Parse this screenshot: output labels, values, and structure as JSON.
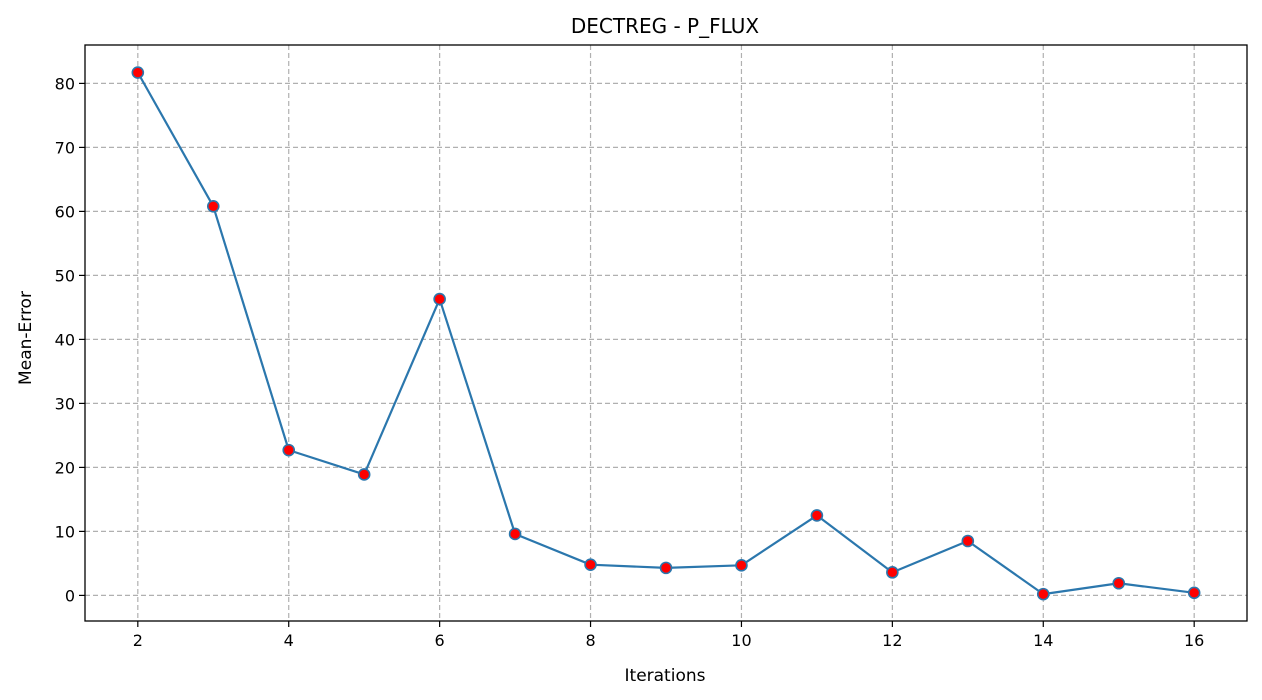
{
  "chart_data": {
    "type": "line",
    "title": "DECTREG - P_FLUX",
    "xlabel": "Iterations",
    "ylabel": "Mean-Error",
    "x": [
      2,
      3,
      4,
      5,
      6,
      7,
      8,
      9,
      10,
      11,
      12,
      13,
      14,
      15,
      16
    ],
    "series": [
      {
        "values": [
          81.7,
          60.8,
          22.7,
          18.9,
          46.3,
          9.6,
          4.8,
          4.3,
          4.7,
          12.5,
          3.6,
          8.5,
          0.2,
          1.9,
          0.4
        ],
        "line_color": "#2b77ad",
        "marker_color": "#ff0000",
        "marker_edge": "#2b77ad"
      }
    ],
    "xlim": [
      1.3,
      16.7
    ],
    "ylim": [
      -4,
      86
    ],
    "xticks": [
      2,
      4,
      6,
      8,
      10,
      12,
      14,
      16
    ],
    "yticks": [
      0,
      10,
      20,
      30,
      40,
      50,
      60,
      70,
      80
    ],
    "grid": true,
    "legend": false
  }
}
